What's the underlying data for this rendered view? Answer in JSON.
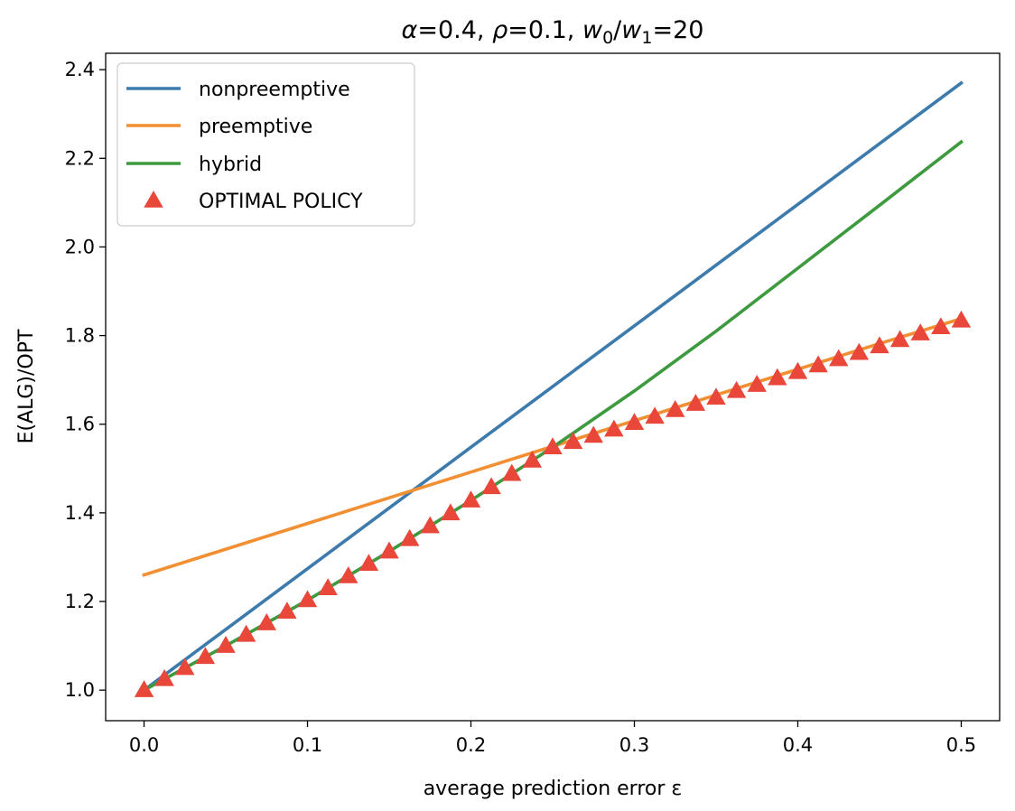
{
  "chart_data": {
    "type": "line",
    "title": {
      "alpha_sym": "α",
      "alpha_val": "=0.4, ",
      "rho_sym": "ρ",
      "rho_val": "=0.1, ",
      "w0": "w",
      "w0_sub": "0",
      "slash": "/",
      "w1": "w",
      "w1_sub": "1",
      "ratio_val": "=20"
    },
    "xlabel": "average prediction error ε",
    "ylabel": "E(ALG)/OPT",
    "xlim": [
      -0.0235,
      0.5235
    ],
    "ylim": [
      0.931,
      2.437
    ],
    "xticks": [
      0.0,
      0.1,
      0.2,
      0.3,
      0.4,
      0.5
    ],
    "xtick_labels": [
      "0.0",
      "0.1",
      "0.2",
      "0.3",
      "0.4",
      "0.5"
    ],
    "yticks": [
      1.0,
      1.2,
      1.4,
      1.6,
      1.8,
      2.0,
      2.2,
      2.4
    ],
    "ytick_labels": [
      "1.0",
      "1.2",
      "1.4",
      "1.6",
      "1.8",
      "2.0",
      "2.2",
      "2.4"
    ],
    "legend_position": "upper-left",
    "grid": false,
    "series": [
      {
        "name": "nonpreemptive",
        "kind": "line",
        "color": "#3d7bad",
        "x": [
          0.0,
          0.05,
          0.1,
          0.15,
          0.2,
          0.25,
          0.3,
          0.35,
          0.4,
          0.45,
          0.5
        ],
        "y": [
          1.0,
          1.137,
          1.274,
          1.411,
          1.548,
          1.685,
          1.822,
          1.959,
          2.096,
          2.233,
          2.37
        ]
      },
      {
        "name": "preemptive",
        "kind": "line",
        "color": "#f28f32",
        "x": [
          0.0,
          0.05,
          0.1,
          0.15,
          0.2,
          0.25,
          0.3,
          0.35,
          0.4,
          0.45,
          0.5
        ],
        "y": [
          1.26,
          1.318,
          1.376,
          1.434,
          1.492,
          1.55,
          1.608,
          1.666,
          1.724,
          1.782,
          1.838
        ]
      },
      {
        "name": "hybrid",
        "kind": "line",
        "color": "#3e9a3e",
        "x": [
          0.0,
          0.05,
          0.1,
          0.15,
          0.2,
          0.25,
          0.3,
          0.35,
          0.4,
          0.45,
          0.5
        ],
        "y": [
          1.0,
          1.1,
          1.203,
          1.313,
          1.428,
          1.548,
          1.675,
          1.81,
          1.952,
          2.094,
          2.237
        ]
      },
      {
        "name": "OPTIMAL POLICY",
        "kind": "marker",
        "marker": "triangle",
        "color": "#e8473a",
        "x": [
          0.0,
          0.0125,
          0.025,
          0.0375,
          0.05,
          0.0625,
          0.075,
          0.0875,
          0.1,
          0.1125,
          0.125,
          0.1375,
          0.15,
          0.1625,
          0.175,
          0.1875,
          0.2,
          0.2125,
          0.225,
          0.2375,
          0.25,
          0.2625,
          0.275,
          0.2875,
          0.3,
          0.3125,
          0.325,
          0.3375,
          0.35,
          0.3625,
          0.375,
          0.3875,
          0.4,
          0.4125,
          0.425,
          0.4375,
          0.45,
          0.4625,
          0.475,
          0.4875,
          0.5
        ],
        "y": [
          1.0,
          1.025,
          1.05,
          1.075,
          1.1,
          1.125,
          1.151,
          1.177,
          1.203,
          1.23,
          1.257,
          1.285,
          1.313,
          1.341,
          1.37,
          1.399,
          1.428,
          1.458,
          1.488,
          1.518,
          1.548,
          1.56,
          1.574,
          1.588,
          1.603,
          1.617,
          1.632,
          1.646,
          1.66,
          1.675,
          1.689,
          1.704,
          1.718,
          1.733,
          1.747,
          1.761,
          1.776,
          1.79,
          1.805,
          1.819,
          1.834
        ]
      }
    ]
  }
}
